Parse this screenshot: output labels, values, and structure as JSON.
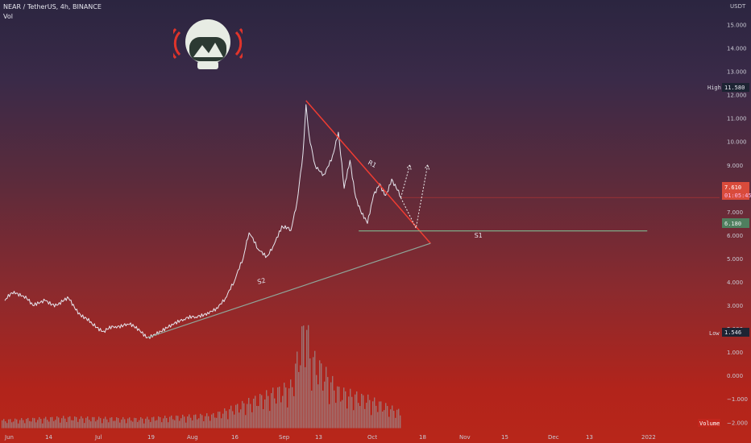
{
  "header": {
    "symbol_line": "NEAR / TetherUS, 4h, BINANCE",
    "vol_label": "Vol"
  },
  "chart_data": {
    "type": "line",
    "title": "NEAR / TetherUS, 4h, BINANCE",
    "currency": "USDT",
    "y_tick_labels": [
      "15.000",
      "14.000",
      "13.000",
      "12.000",
      "11.000",
      "10.000",
      "9.000",
      "8.000",
      "7.000",
      "6.000",
      "5.000",
      "4.000",
      "3.000",
      "2.000",
      "1.000",
      "0.000",
      "−1.000",
      "−2.000"
    ],
    "x_tick_labels": [
      "Jun",
      "14",
      "Jul",
      "19",
      "Aug",
      "16",
      "Sep",
      "13",
      "Oct",
      "18",
      "Nov",
      "15",
      "Dec",
      "13",
      "2022"
    ],
    "ylim": [
      -2.3,
      15.5
    ],
    "price_series": [
      {
        "t": "Jun 1",
        "v": 3.2
      },
      {
        "t": "Jun 4",
        "v": 3.6
      },
      {
        "t": "Jun 7",
        "v": 3.4
      },
      {
        "t": "Jun 10",
        "v": 3.0
      },
      {
        "t": "Jun 14",
        "v": 3.2
      },
      {
        "t": "Jun 18",
        "v": 3.0
      },
      {
        "t": "Jun 22",
        "v": 3.3
      },
      {
        "t": "Jun 26",
        "v": 2.6
      },
      {
        "t": "Jun 30",
        "v": 2.2
      },
      {
        "t": "Jul 4",
        "v": 1.9
      },
      {
        "t": "Jul 8",
        "v": 2.1
      },
      {
        "t": "Jul 12",
        "v": 2.2
      },
      {
        "t": "Jul 16",
        "v": 2.0
      },
      {
        "t": "Jul 19",
        "v": 1.62
      },
      {
        "t": "Jul 23",
        "v": 1.9
      },
      {
        "t": "Jul 27",
        "v": 2.2
      },
      {
        "t": "Jul 31",
        "v": 2.4
      },
      {
        "t": "Aug 4",
        "v": 2.5
      },
      {
        "t": "Aug 8",
        "v": 2.7
      },
      {
        "t": "Aug 11",
        "v": 2.9
      },
      {
        "t": "Aug 14",
        "v": 3.3
      },
      {
        "t": "Aug 17",
        "v": 4.0
      },
      {
        "t": "Aug 20",
        "v": 5.0
      },
      {
        "t": "Aug 22",
        "v": 6.1
      },
      {
        "t": "Aug 25",
        "v": 5.4
      },
      {
        "t": "Aug 28",
        "v": 5.1
      },
      {
        "t": "Aug 30",
        "v": 5.5
      },
      {
        "t": "Sep 2",
        "v": 6.4
      },
      {
        "t": "Sep 5",
        "v": 6.2
      },
      {
        "t": "Sep 7",
        "v": 7.4
      },
      {
        "t": "Sep 9",
        "v": 9.5
      },
      {
        "t": "Sep 10",
        "v": 11.58
      },
      {
        "t": "Sep 11",
        "v": 10.3
      },
      {
        "t": "Sep 13",
        "v": 9.0
      },
      {
        "t": "Sep 16",
        "v": 8.6
      },
      {
        "t": "Sep 19",
        "v": 9.4
      },
      {
        "t": "Sep 21",
        "v": 10.4
      },
      {
        "t": "Sep 23",
        "v": 8.0
      },
      {
        "t": "Sep 25",
        "v": 9.2
      },
      {
        "t": "Sep 27",
        "v": 7.6
      },
      {
        "t": "Sep 29",
        "v": 6.9
      },
      {
        "t": "Oct 1",
        "v": 6.5
      },
      {
        "t": "Oct 3",
        "v": 7.7
      },
      {
        "t": "Oct 5",
        "v": 8.2
      },
      {
        "t": "Oct 7",
        "v": 7.7
      },
      {
        "t": "Oct 9",
        "v": 8.4
      },
      {
        "t": "Oct 12",
        "v": 7.61
      }
    ],
    "volume_series": [
      {
        "t": "Jun 1",
        "v": 0.3
      },
      {
        "t": "Jun 20",
        "v": 0.4
      },
      {
        "t": "Jul 15",
        "v": 0.35
      },
      {
        "t": "Aug 10",
        "v": 0.5
      },
      {
        "t": "Aug 22",
        "v": 1.0
      },
      {
        "t": "Sep 5",
        "v": 1.6
      },
      {
        "t": "Sep 10",
        "v": 4.2
      },
      {
        "t": "Sep 11",
        "v": 2.8
      },
      {
        "t": "Sep 21",
        "v": 1.4
      },
      {
        "t": "Oct 1",
        "v": 1.1
      },
      {
        "t": "Oct 12",
        "v": 0.6
      }
    ],
    "trendlines": [
      {
        "name": "R1",
        "from": {
          "t": "Sep 10",
          "v": 11.75
        },
        "to": {
          "t": "Oct 22",
          "v": 5.65
        },
        "color": "#ef3c32"
      },
      {
        "name": "S2",
        "from": {
          "t": "Jul 19",
          "v": 1.62
        },
        "to": {
          "t": "Oct 22",
          "v": 5.65
        },
        "color": "#8fa69a"
      },
      {
        "name": "S1",
        "from": {
          "t": "Sep 28",
          "v": 6.18
        },
        "to": {
          "t": "2022 Jan 3",
          "v": 6.18
        },
        "color": "#7fb890"
      }
    ],
    "projections": [
      {
        "name": "path-a",
        "points": [
          {
            "t": "Oct 12",
            "v": 7.6
          },
          {
            "t": "Oct 17",
            "v": 6.3
          },
          {
            "t": "Oct 21",
            "v": 9.0
          }
        ]
      },
      {
        "name": "path-b",
        "points": [
          {
            "t": "Oct 12",
            "v": 7.6
          },
          {
            "t": "Oct 15",
            "v": 9.0
          }
        ]
      }
    ],
    "annotations": [
      {
        "text": "R1",
        "t": "Oct 1",
        "v": 9.05
      },
      {
        "text": "S2",
        "t": "Aug 25",
        "v": 3.9
      },
      {
        "text": "S1",
        "t": "Nov 6",
        "v": 5.9
      }
    ],
    "tags": {
      "high_label": "High",
      "high_value": "11.580",
      "low_label": "Low",
      "low_value": "1.546",
      "last_value": "7.610",
      "countdown": "01:05:45",
      "support_value": "6.180",
      "volume_label": "Volume"
    }
  },
  "colors": {
    "trendline_red": "#ef3c32",
    "support_green": "#7fb890",
    "price_line": "#e6e6ee",
    "volume": "#9a8f92",
    "last_tag": "#d94b3b",
    "support_tag": "#4f7f5f",
    "high_low_tag": "#1d2433"
  },
  "logo": {
    "icon": "astronaut-helmet-icon"
  }
}
